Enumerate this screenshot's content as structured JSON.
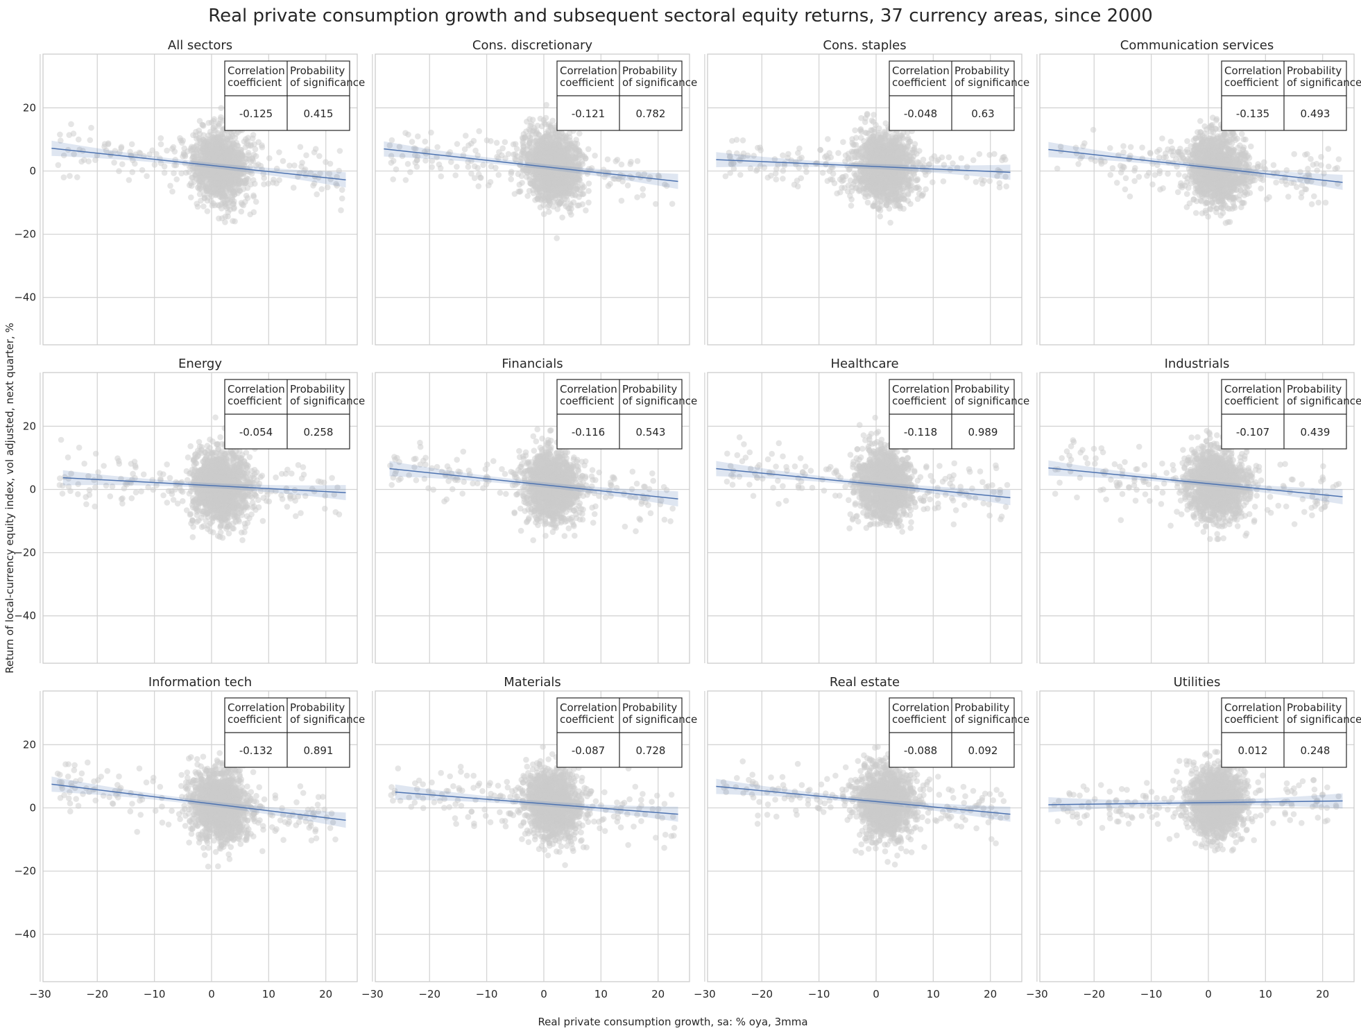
{
  "chart_data": {
    "type": "scatter",
    "title": "Real private consumption growth and subsequent sectoral equity returns, 37 currency areas, since 2000",
    "xlabel": "Real private consumption growth, sa: % oya, 3mma",
    "ylabel": "Return of local-currency equity index, vol adjusted, next quarter, %",
    "xlim": [
      -29.5,
      25.5
    ],
    "ylim": [
      -55,
      37
    ],
    "xticks": [
      -30,
      -20,
      -10,
      0,
      10,
      20
    ],
    "yticks": [
      20,
      0,
      -20,
      -40
    ],
    "grid": true,
    "table_headers": {
      "correlation": [
        "Correlation",
        " coefficient"
      ],
      "probability": [
        "Probability",
        "of significance"
      ]
    },
    "panels": [
      {
        "title": "All sectors",
        "correlation": "-0.125",
        "probability": "0.415",
        "line": [
          [
            -28,
            7.2
          ],
          [
            23.5,
            -2.8
          ]
        ]
      },
      {
        "title": "Cons. discretionary",
        "correlation": "-0.121",
        "probability": "0.782",
        "line": [
          [
            -28,
            7.0
          ],
          [
            23.5,
            -3.3
          ]
        ]
      },
      {
        "title": "Cons. staples",
        "correlation": "-0.048",
        "probability": "0.63",
        "line": [
          [
            -28,
            3.6
          ],
          [
            23.5,
            -0.4
          ]
        ]
      },
      {
        "title": "Communication services",
        "correlation": "-0.135",
        "probability": "0.493",
        "line": [
          [
            -28,
            6.8
          ],
          [
            23.5,
            -3.6
          ]
        ]
      },
      {
        "title": "Energy",
        "correlation": "-0.054",
        "probability": "0.258",
        "line": [
          [
            -26,
            3.7
          ],
          [
            23.5,
            -1.0
          ]
        ]
      },
      {
        "title": "Financials",
        "correlation": "-0.116",
        "probability": "0.543",
        "line": [
          [
            -27,
            6.6
          ],
          [
            23.5,
            -3.0
          ]
        ]
      },
      {
        "title": "Healthcare",
        "correlation": "-0.118",
        "probability": "0.989",
        "line": [
          [
            -28,
            6.6
          ],
          [
            23.5,
            -2.6
          ]
        ]
      },
      {
        "title": "Industrials",
        "correlation": "-0.107",
        "probability": "0.439",
        "line": [
          [
            -28,
            6.8
          ],
          [
            23.5,
            -2.3
          ]
        ]
      },
      {
        "title": "Information tech",
        "correlation": "-0.132",
        "probability": "0.891",
        "line": [
          [
            -28,
            7.5
          ],
          [
            23.5,
            -3.9
          ]
        ]
      },
      {
        "title": "Materials",
        "correlation": "-0.087",
        "probability": "0.728",
        "line": [
          [
            -26,
            5.0
          ],
          [
            23.5,
            -2.0
          ]
        ]
      },
      {
        "title": "Real estate",
        "correlation": "-0.088",
        "probability": "0.092",
        "line": [
          [
            -28,
            6.8
          ],
          [
            23.5,
            -2.0
          ]
        ]
      },
      {
        "title": "Utilities",
        "correlation": "0.012",
        "probability": "0.248",
        "line": [
          [
            -28,
            1.0
          ],
          [
            23.5,
            2.2
          ]
        ]
      }
    ]
  }
}
